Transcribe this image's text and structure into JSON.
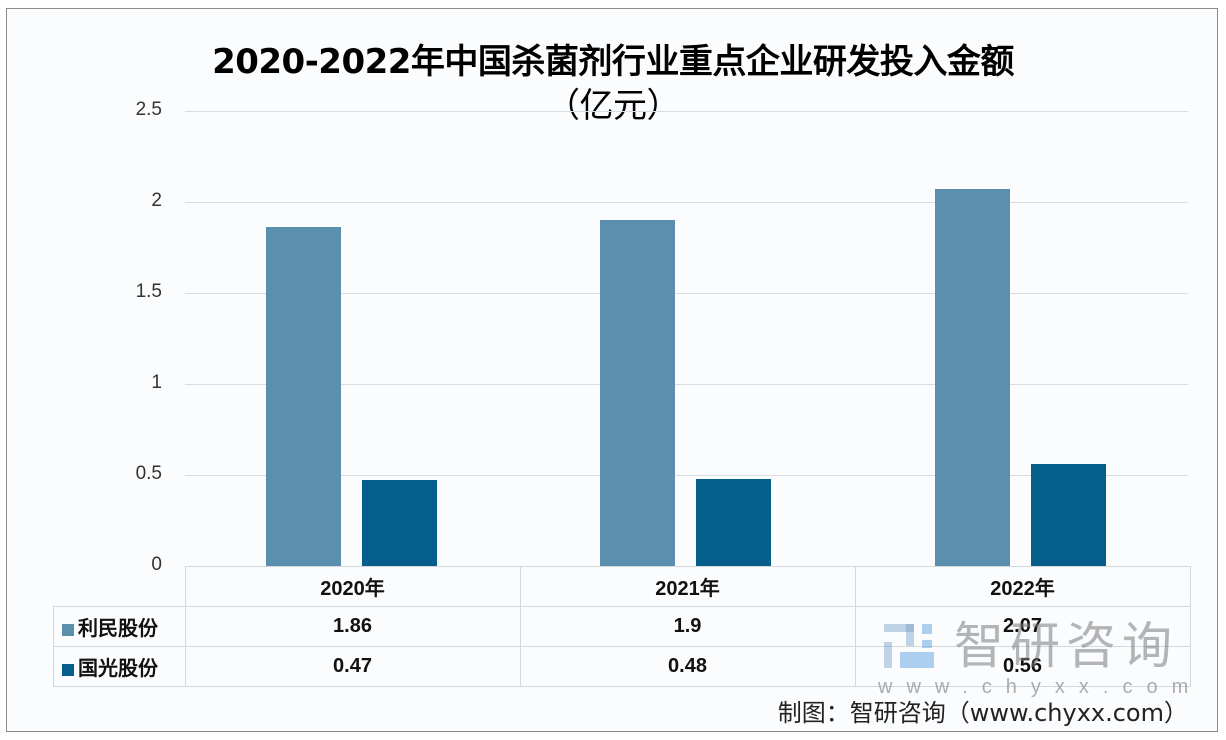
{
  "title": {
    "main": "2020-2022年中国杀菌剂行业重点企业研发投入金额",
    "unit": "（亿元）"
  },
  "y_axis": {
    "ticks": [
      "2.5",
      "2",
      "1.5",
      "1",
      "0.5",
      "0"
    ]
  },
  "table": {
    "categories": [
      "2020年",
      "2021年",
      "2022年"
    ],
    "rows": [
      {
        "name": "利民股份",
        "values": [
          "1.86",
          "1.9",
          "2.07"
        ]
      },
      {
        "name": "国光股份",
        "values": [
          "0.47",
          "0.48",
          "0.56"
        ]
      }
    ]
  },
  "colors": {
    "series_0": "#5b8fae",
    "series_1": "#065f8a"
  },
  "watermark": {
    "text": "智研咨询",
    "url": "www.chyxx.com"
  },
  "source": "制图：智研咨询（www.chyxx.com）",
  "chart_data": {
    "type": "bar",
    "title": "2020-2022年中国杀菌剂行业重点企业研发投入金额（亿元）",
    "categories": [
      "2020年",
      "2021年",
      "2022年"
    ],
    "series": [
      {
        "name": "利民股份",
        "values": [
          1.86,
          1.9,
          2.07
        ],
        "color": "#5b8fae"
      },
      {
        "name": "国光股份",
        "values": [
          0.47,
          0.48,
          0.56
        ],
        "color": "#065f8a"
      }
    ],
    "xlabel": "",
    "ylabel": "亿元",
    "ylim": [
      0,
      2.5
    ],
    "yticks": [
      0,
      0.5,
      1,
      1.5,
      2,
      2.5
    ],
    "grid": true,
    "legend": "data table below chart"
  }
}
